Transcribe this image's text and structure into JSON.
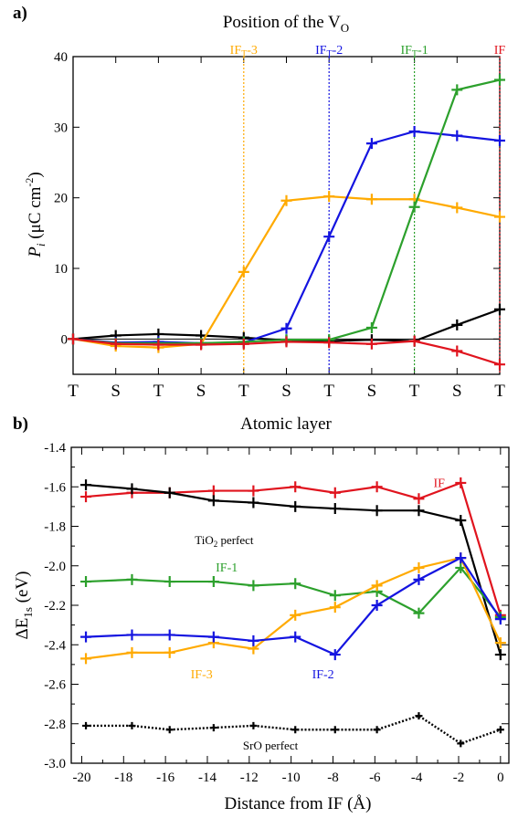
{
  "chart_data": [
    {
      "type": "line",
      "panel_label": "a)",
      "title": "Position of the V",
      "title_sub": "O",
      "xlabel": "Atomic layer",
      "ylabel_main": "P",
      "ylabel_sub": "i",
      "ylabel_unit": "(μC cm",
      "ylabel_sup": "-2",
      "ylabel_close": ")",
      "categories": [
        "T",
        "S",
        "T",
        "S",
        "T",
        "S",
        "T",
        "S",
        "T",
        "S",
        "T"
      ],
      "ylim": [
        -5,
        40
      ],
      "yticks": [
        0,
        10,
        20,
        30,
        40
      ],
      "zero_line": true,
      "markers": [
        {
          "label": "IF",
          "sub": "",
          "suffix": "",
          "index": 10,
          "color": "#e0141e"
        },
        {
          "label": "IF",
          "sub": "T",
          "suffix": "-1",
          "index": 8,
          "color": "#2ca02c"
        },
        {
          "label": "IF",
          "sub": "T",
          "suffix": "-2",
          "index": 6,
          "color": "#1414e0"
        },
        {
          "label": "IF",
          "sub": "T",
          "suffix": "-3",
          "index": 4,
          "color": "#ffaa00"
        }
      ],
      "series": [
        {
          "key": "black",
          "color": "#000000",
          "values": [
            0,
            0.5,
            0.7,
            0.5,
            0.2,
            -0.2,
            -0.3,
            -0.1,
            -0.3,
            2.0,
            4.2
          ]
        },
        {
          "key": "orange",
          "color": "#ffaa00",
          "values": [
            0,
            -1.0,
            -1.2,
            -0.7,
            9.5,
            19.6,
            20.2,
            19.8,
            19.8,
            18.6,
            17.3
          ]
        },
        {
          "key": "blue",
          "color": "#1414e0",
          "values": [
            0,
            -0.5,
            -0.4,
            -0.6,
            -0.5,
            1.5,
            14.5,
            27.7,
            29.4,
            28.8,
            28.1
          ]
        },
        {
          "key": "green",
          "color": "#2ca02c",
          "values": [
            0,
            -0.6,
            -0.6,
            -0.6,
            -0.4,
            -0.1,
            -0.1,
            1.6,
            18.7,
            35.3,
            36.7
          ]
        },
        {
          "key": "red",
          "color": "#e0141e",
          "values": [
            0,
            -0.7,
            -0.8,
            -0.8,
            -0.7,
            -0.4,
            -0.5,
            -0.7,
            -0.3,
            -1.7,
            -3.6
          ]
        }
      ]
    },
    {
      "type": "line",
      "panel_label": "b)",
      "xlabel": "Distance from IF (Å)",
      "ylabel_main": "ΔE",
      "ylabel_sub": "1s",
      "ylabel_unit": "(eV)",
      "xlim": [
        -20.5,
        0.4
      ],
      "xticks": [
        -20,
        -18,
        -16,
        -14,
        -12,
        -10,
        -8,
        -6,
        -4,
        -2,
        0
      ],
      "ylim": [
        -3.0,
        -1.4
      ],
      "yticks": [
        -1.4,
        -1.6,
        -1.8,
        -2.0,
        -2.2,
        -2.4,
        -2.6,
        -2.8,
        -3.0
      ],
      "x": [
        -19.8,
        -17.6,
        -15.8,
        -13.7,
        -11.8,
        -9.8,
        -7.9,
        -5.9,
        -3.9,
        -1.9,
        0
      ],
      "annotations": [
        {
          "text": "IF",
          "x": -3.2,
          "y": -1.6,
          "color": "#e0141e"
        },
        {
          "text": "TiO",
          "sub": "2",
          "suffix": " perfect",
          "x": -14.6,
          "y": -1.89,
          "color": "#000000"
        },
        {
          "text": "IF-1",
          "x": -13.6,
          "y": -2.03,
          "color": "#2ca02c"
        },
        {
          "text": "IF-3",
          "x": -14.8,
          "y": -2.57,
          "color": "#ffaa00"
        },
        {
          "text": "IF-2",
          "x": -9.0,
          "y": -2.57,
          "color": "#1414e0"
        },
        {
          "text": "SrO perfect",
          "x": -12.3,
          "y": -2.93,
          "color": "#000000"
        }
      ],
      "series": [
        {
          "key": "red",
          "color": "#e0141e",
          "values": [
            -1.65,
            -1.63,
            -1.63,
            -1.62,
            -1.62,
            -1.6,
            -1.63,
            -1.6,
            -1.66,
            -1.58,
            -2.25
          ]
        },
        {
          "key": "black",
          "color": "#000000",
          "values": [
            -1.59,
            -1.61,
            -1.63,
            -1.67,
            -1.68,
            -1.7,
            -1.71,
            -1.72,
            -1.72,
            -1.77,
            -2.45
          ]
        },
        {
          "key": "green",
          "color": "#2ca02c",
          "values": [
            -2.08,
            -2.07,
            -2.08,
            -2.08,
            -2.1,
            -2.09,
            -2.15,
            -2.13,
            -2.24,
            -2.01,
            -2.26
          ]
        },
        {
          "key": "orange",
          "color": "#ffaa00",
          "values": [
            -2.47,
            -2.44,
            -2.44,
            -2.39,
            -2.42,
            -2.25,
            -2.21,
            -2.1,
            -2.01,
            -1.96,
            -2.39
          ]
        },
        {
          "key": "blue",
          "color": "#1414e0",
          "values": [
            -2.36,
            -2.35,
            -2.35,
            -2.36,
            -2.38,
            -2.36,
            -2.45,
            -2.2,
            -2.07,
            -1.96,
            -2.27
          ]
        },
        {
          "key": "sro",
          "color": "#000000",
          "dashed": true,
          "values": [
            -2.81,
            -2.81,
            -2.83,
            -2.82,
            -2.81,
            -2.83,
            -2.83,
            -2.83,
            -2.76,
            -2.9,
            -2.83
          ]
        }
      ]
    }
  ]
}
